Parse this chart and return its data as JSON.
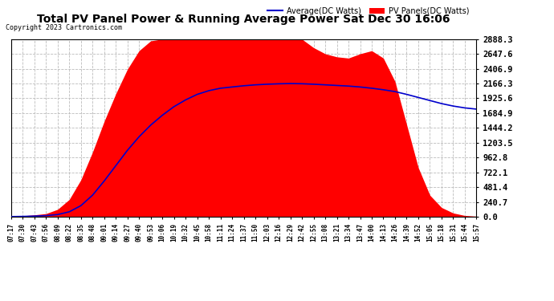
{
  "title": "Total PV Panel Power & Running Average Power Sat Dec 30 16:06",
  "copyright": "Copyright 2023 Cartronics.com",
  "legend_avg": "Average(DC Watts)",
  "legend_pv": "PV Panels(DC Watts)",
  "yticks": [
    0.0,
    240.7,
    481.4,
    722.1,
    962.8,
    1203.5,
    1444.2,
    1684.9,
    1925.6,
    2166.3,
    2406.9,
    2647.6,
    2888.3
  ],
  "ymax": 2888.3,
  "bg_color": "#ffffff",
  "plot_bg_color": "#ffffff",
  "grid_color": "#bbbbbb",
  "fill_color": "#ff0000",
  "line_color": "#0000cc",
  "title_color": "#000000",
  "copyright_color": "#000000",
  "avg_legend_color": "#0000cc",
  "pv_legend_color": "#ff0000",
  "xtick_labels": [
    "07:17",
    "07:30",
    "07:43",
    "07:56",
    "08:09",
    "08:22",
    "08:35",
    "08:48",
    "09:01",
    "09:14",
    "09:27",
    "09:40",
    "09:53",
    "10:06",
    "10:19",
    "10:32",
    "10:45",
    "10:58",
    "11:11",
    "11:24",
    "11:37",
    "11:50",
    "12:03",
    "12:16",
    "12:29",
    "12:42",
    "12:55",
    "13:08",
    "13:21",
    "13:34",
    "13:47",
    "14:00",
    "14:13",
    "14:26",
    "14:39",
    "14:52",
    "15:05",
    "15:18",
    "15:31",
    "15:44",
    "15:57"
  ],
  "pv_data": [
    5,
    15,
    30,
    50,
    120,
    280,
    600,
    1050,
    1550,
    2000,
    2400,
    2700,
    2860,
    2888,
    2888,
    2888,
    2888,
    2888,
    2888,
    2888,
    2888,
    2888,
    2888,
    2888,
    2888,
    2888,
    2750,
    2650,
    2600,
    2580,
    2650,
    2700,
    2580,
    2200,
    1500,
    800,
    350,
    150,
    60,
    20,
    8
  ],
  "avg_data": [
    2,
    5,
    10,
    18,
    35,
    80,
    180,
    350,
    580,
    830,
    1080,
    1300,
    1490,
    1650,
    1790,
    1900,
    1990,
    2050,
    2090,
    2110,
    2130,
    2145,
    2155,
    2162,
    2166,
    2163,
    2155,
    2145,
    2135,
    2125,
    2110,
    2090,
    2065,
    2035,
    1990,
    1940,
    1890,
    1840,
    1800,
    1770,
    1750
  ]
}
